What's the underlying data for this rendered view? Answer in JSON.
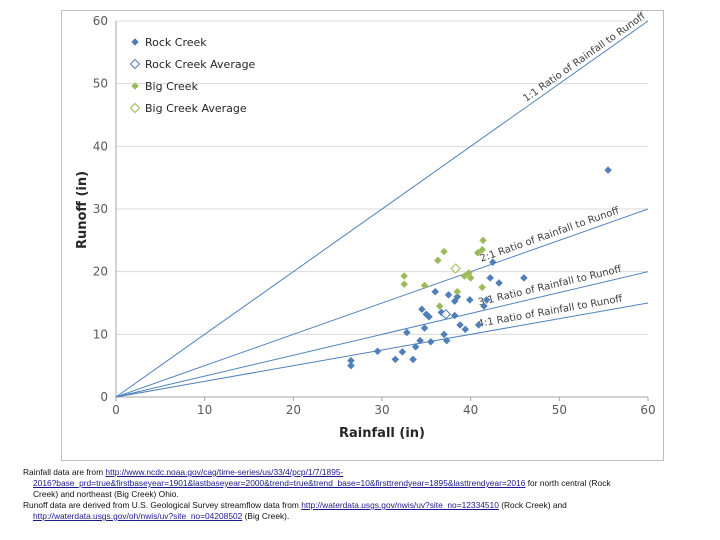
{
  "chart_data": {
    "type": "scatter",
    "xlabel": "Rainfall (in)",
    "ylabel": "Runoff (in)",
    "xlim": [
      0,
      60
    ],
    "ylim": [
      0,
      60
    ],
    "xticks": [
      0,
      10,
      20,
      30,
      40,
      50,
      60
    ],
    "yticks": [
      0,
      10,
      20,
      30,
      40,
      50,
      60
    ],
    "grid": "horizontal",
    "legend_position": "top-left",
    "series": [
      {
        "name": "Rock Creek",
        "marker": "filled-diamond",
        "color": "#4f7fb8",
        "points": [
          [
            26.5,
            5.0
          ],
          [
            26.5,
            5.8
          ],
          [
            29.5,
            7.3
          ],
          [
            31.5,
            6.0
          ],
          [
            32.3,
            7.2
          ],
          [
            32.8,
            10.3
          ],
          [
            33.5,
            6.0
          ],
          [
            33.8,
            8.0
          ],
          [
            34.3,
            9.0
          ],
          [
            34.5,
            14.0
          ],
          [
            34.8,
            11.0
          ],
          [
            35.0,
            13.2
          ],
          [
            35.3,
            12.8
          ],
          [
            35.5,
            8.8
          ],
          [
            36.0,
            16.8
          ],
          [
            36.7,
            13.5
          ],
          [
            37.0,
            10.0
          ],
          [
            37.3,
            9.0
          ],
          [
            37.5,
            16.3
          ],
          [
            38.2,
            13.0
          ],
          [
            38.2,
            15.3
          ],
          [
            38.5,
            16.0
          ],
          [
            38.8,
            11.5
          ],
          [
            39.4,
            10.8
          ],
          [
            39.9,
            15.5
          ],
          [
            40.9,
            11.5
          ],
          [
            41.5,
            14.5
          ],
          [
            41.8,
            15.5
          ],
          [
            42.2,
            19.0
          ],
          [
            42.5,
            21.5
          ],
          [
            43.2,
            18.2
          ],
          [
            46.0,
            19.0
          ],
          [
            55.5,
            36.2
          ]
        ]
      },
      {
        "name": "Rock Creek Average",
        "marker": "hollow-diamond",
        "color": "#4f7fb8",
        "points": [
          [
            37.2,
            13.2
          ]
        ]
      },
      {
        "name": "Big Creek",
        "marker": "filled-diamond",
        "color": "#9bbb59",
        "points": [
          [
            32.5,
            18.0
          ],
          [
            32.5,
            19.3
          ],
          [
            34.8,
            17.8
          ],
          [
            36.3,
            21.8
          ],
          [
            36.5,
            14.5
          ],
          [
            37.0,
            23.2
          ],
          [
            38.5,
            16.8
          ],
          [
            39.3,
            19.3
          ],
          [
            39.8,
            19.8
          ],
          [
            40.0,
            19.0
          ],
          [
            40.8,
            23.0
          ],
          [
            41.3,
            17.5
          ],
          [
            41.3,
            23.5
          ],
          [
            41.4,
            25.0
          ]
        ]
      },
      {
        "name": "Big Creek Average",
        "marker": "hollow-diamond",
        "color": "#9bbb59",
        "points": [
          [
            38.3,
            20.5
          ]
        ]
      }
    ],
    "reference_lines": [
      {
        "label": "1:1 Ratio of Rainfall to Runoff",
        "slope": 1.0
      },
      {
        "label": "2:1 Ratio of Rainfall to Runoff",
        "slope": 0.5
      },
      {
        "label": "3:1 Ratio of Rainfall to Runoff",
        "slope": 0.3333
      },
      {
        "label": "4:1 Ratio of Rainfall to Runoff",
        "slope": 0.25
      }
    ]
  },
  "footnote": {
    "line1_text": "Rainfall data are from ",
    "line1_link1": "http://www.ncdc.noaa.gov/cag/time-series/us/33/4/pcp/1/7/1895-",
    "line2_link1_cont": "2016?base_prd=true&firstbaseyear=1901&lastbaseyear=2000&trend=true&trend_base=10&firsttrendyear=1895&lasttrendyear=2016",
    "line2_text": " for north central (Rock",
    "line3_text": "Creek) and northeast (Big Creek) Ohio.",
    "line4_text": "Runoff data are derived from U.S. Geological Survey streamflow data from ",
    "line4_link": "http://waterdata.usgs.gov/nwis/uv?site_no=12334510",
    "line4_text2": " (Rock Creek) and",
    "line5_link": "http://waterdata.usgs.gov/oh/nwis/uv?site_no=04208502",
    "line5_text": " (Big Creek)."
  }
}
